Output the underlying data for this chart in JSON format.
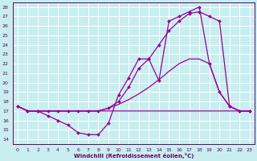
{
  "background_color": "#c8eef0",
  "grid_color": "#ffffff",
  "line_color": "#990099",
  "xlabel": "Windchill (Refroidissement éolien,°C)",
  "yticks": [
    14,
    15,
    16,
    17,
    18,
    19,
    20,
    21,
    22,
    23,
    24,
    25,
    26,
    27,
    28
  ],
  "xticks": [
    0,
    1,
    2,
    3,
    4,
    5,
    6,
    7,
    8,
    9,
    10,
    11,
    12,
    13,
    14,
    15,
    16,
    17,
    18,
    19,
    20,
    21,
    22,
    23
  ],
  "xlim": [
    -0.5,
    23.5
  ],
  "ylim": [
    13.5,
    28.5
  ],
  "line_dip_x": [
    0,
    1,
    2,
    3,
    4,
    5,
    6,
    7,
    8,
    9,
    10,
    11,
    12,
    13,
    14,
    15,
    16,
    17,
    18,
    19,
    20,
    21,
    22,
    23
  ],
  "line_dip_y": [
    17.5,
    17.0,
    17.0,
    16.5,
    16.0,
    15.5,
    14.7,
    14.5,
    14.5,
    15.7,
    18.7,
    20.5,
    22.5,
    22.5,
    20.2,
    26.5,
    27.0,
    27.5,
    28.0,
    22.0,
    19.0,
    17.5,
    17.0,
    17.0
  ],
  "line_flat_x": [
    0,
    1,
    2,
    3,
    4,
    5,
    6,
    7,
    8,
    9,
    10,
    11,
    12,
    13,
    14,
    15,
    16,
    17,
    18,
    19,
    20,
    21,
    22,
    23
  ],
  "line_flat_y": [
    17.5,
    17.0,
    17.0,
    17.0,
    17.0,
    17.0,
    17.0,
    17.0,
    17.0,
    17.0,
    17.0,
    17.0,
    17.0,
    17.0,
    17.0,
    17.0,
    17.0,
    17.0,
    17.0,
    17.0,
    17.0,
    17.0,
    17.0,
    17.0
  ],
  "line_mid_x": [
    0,
    1,
    2,
    3,
    4,
    5,
    6,
    7,
    8,
    9,
    10,
    11,
    12,
    13,
    14,
    15,
    16,
    17,
    18,
    19,
    20,
    21,
    22,
    23
  ],
  "line_mid_y": [
    17.5,
    17.0,
    17.0,
    17.0,
    17.0,
    17.0,
    17.0,
    17.0,
    17.0,
    17.3,
    17.7,
    18.2,
    18.8,
    19.5,
    20.3,
    21.2,
    22.0,
    22.5,
    22.5,
    22.0,
    19.0,
    17.5,
    17.0,
    17.0
  ],
  "line_high_x": [
    0,
    1,
    2,
    3,
    4,
    5,
    6,
    7,
    8,
    9,
    10,
    11,
    12,
    13,
    14,
    15,
    16,
    17,
    18,
    19,
    20,
    21,
    22,
    23
  ],
  "line_high_y": [
    17.5,
    17.0,
    17.0,
    17.0,
    17.0,
    17.0,
    17.0,
    17.0,
    17.0,
    17.3,
    18.0,
    19.5,
    21.5,
    22.5,
    24.0,
    25.5,
    26.5,
    27.3,
    27.5,
    27.0,
    26.5,
    17.5,
    17.0,
    17.0
  ]
}
